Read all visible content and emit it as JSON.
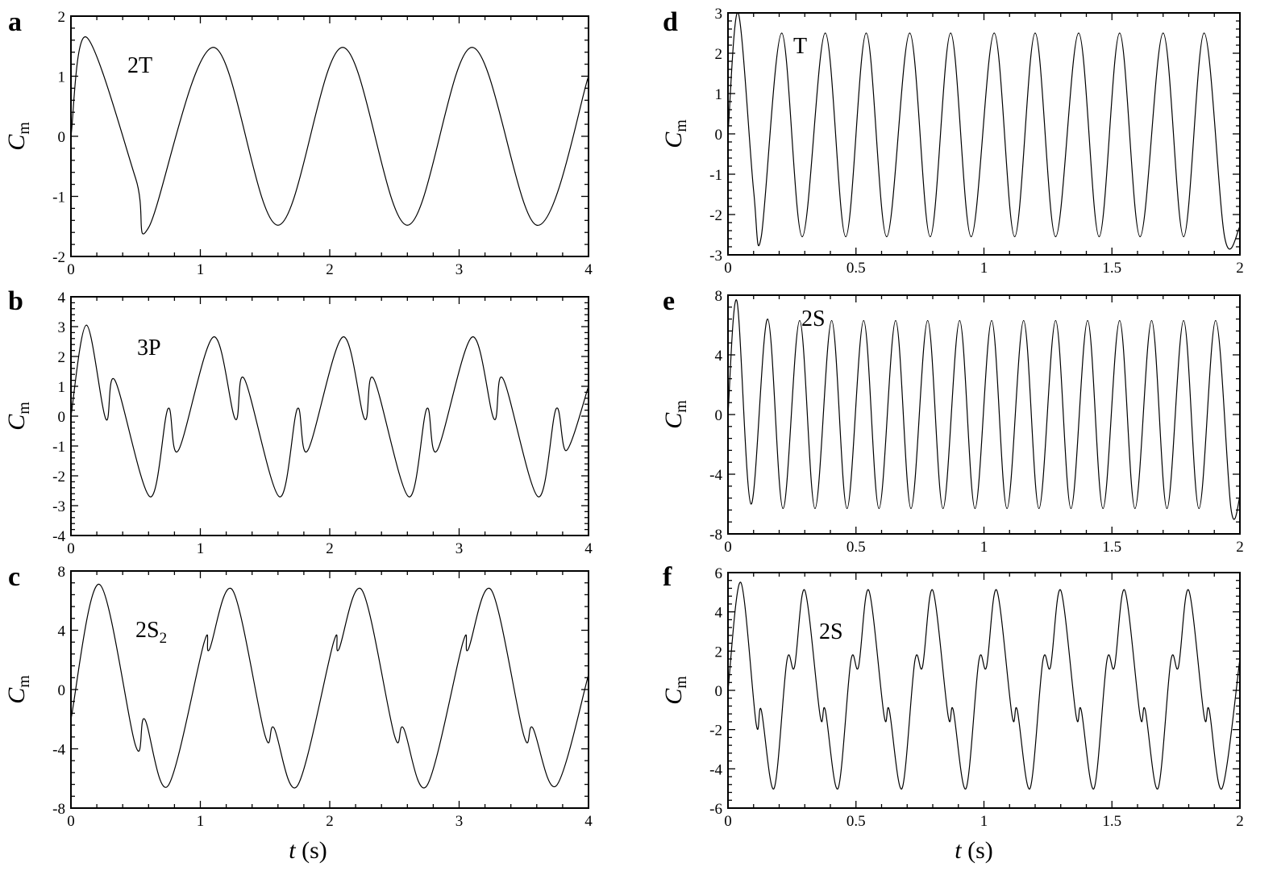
{
  "figure": {
    "x_axis_label_var": "t",
    "x_axis_label_unit": "(s)",
    "y_axis_label_var": "C",
    "y_axis_label_sub": "m"
  },
  "chart_data": [
    {
      "panel": "a",
      "type": "line",
      "annotation": "2T",
      "xlim": [
        0,
        4
      ],
      "ylim": [
        -2,
        2
      ],
      "xticks": [
        0,
        1,
        2,
        3,
        4
      ],
      "yticks": [
        -2,
        -1,
        0,
        1,
        2
      ],
      "xtick_labels": [
        "0",
        "1",
        "2",
        "3",
        "4"
      ],
      "ytick_labels": [
        "-2",
        "-1",
        "0",
        "1",
        "2"
      ],
      "ylabel": "Cm",
      "xlabel": "",
      "series": [
        {
          "x": [
            0,
            0.12,
            0.5,
            0.6,
            1.1,
            1.6,
            2.1,
            2.6,
            3.1,
            3.6,
            4.0
          ],
          "y": [
            0,
            1.65,
            -0.7,
            -1.52,
            1.48,
            -1.48,
            1.48,
            -1.48,
            1.48,
            -1.48,
            1.0
          ]
        }
      ]
    },
    {
      "panel": "b",
      "type": "line",
      "annotation": "3P",
      "xlim": [
        0,
        4
      ],
      "ylim": [
        -4,
        4
      ],
      "xticks": [
        0,
        1,
        2,
        3,
        4
      ],
      "yticks": [
        -4,
        -3,
        -2,
        -1,
        0,
        1,
        2,
        3,
        4
      ],
      "xtick_labels": [
        "0",
        "1",
        "2",
        "3",
        "4"
      ],
      "ytick_labels": [
        "-4",
        "-3",
        "-2",
        "-1",
        "0",
        "1",
        "2",
        "3",
        "4"
      ],
      "ylabel": "Cm",
      "xlabel": "",
      "series": [
        {
          "x": [
            0,
            0.12,
            0.27,
            0.34,
            0.61,
            0.75,
            0.83,
            1.1,
            1.27,
            1.34,
            1.61,
            1.75,
            1.83,
            2.1,
            2.27,
            2.34,
            2.61,
            2.75,
            2.83,
            3.1,
            3.27,
            3.34,
            3.61,
            3.75,
            3.83,
            4.0
          ],
          "y": [
            0,
            3.05,
            -0.1,
            1.2,
            -2.7,
            0.25,
            -1.15,
            2.65,
            -0.1,
            1.25,
            -2.7,
            0.25,
            -1.15,
            2.65,
            -0.1,
            1.25,
            -2.7,
            0.25,
            -1.15,
            2.65,
            -0.1,
            1.25,
            -2.7,
            0.25,
            -1.15,
            1.0
          ]
        }
      ]
    },
    {
      "panel": "c",
      "type": "line",
      "annotation": "2S",
      "annotation_sub": "2",
      "xlim": [
        0,
        4
      ],
      "ylim": [
        -8,
        8
      ],
      "xticks": [
        0,
        1,
        2,
        3,
        4
      ],
      "yticks": [
        -8,
        -4,
        0,
        4,
        8
      ],
      "xtick_labels": [
        "0",
        "1",
        "2",
        "3",
        "4"
      ],
      "ytick_labels": [
        "-8",
        "-4",
        "0",
        "4",
        "8"
      ],
      "ylabel": "Cm",
      "xlabel": "t (s)",
      "series": [
        {
          "x": [
            0,
            0.22,
            0.5,
            0.57,
            0.75,
            1.03,
            1.07,
            1.25,
            1.5,
            1.57,
            1.75,
            2.03,
            2.07,
            2.25,
            2.5,
            2.57,
            2.75,
            3.03,
            3.07,
            3.25,
            3.5,
            3.57,
            3.75,
            4.0
          ],
          "y": [
            -2,
            7.1,
            -3.8,
            -2.0,
            -6.5,
            3.2,
            2.7,
            6.7,
            -3.1,
            -2.6,
            -6.5,
            3.2,
            2.7,
            6.7,
            -3.1,
            -2.6,
            -6.5,
            3.2,
            2.7,
            6.7,
            -3.1,
            -2.6,
            -6.5,
            1.0
          ]
        }
      ]
    },
    {
      "panel": "d",
      "type": "line",
      "annotation": "T",
      "xlim": [
        0,
        2
      ],
      "ylim": [
        -3,
        3
      ],
      "xticks": [
        0,
        0.5,
        1,
        1.5,
        2
      ],
      "yticks": [
        -3,
        -2,
        -1,
        0,
        1,
        2,
        3
      ],
      "xtick_labels": [
        "0",
        "0.5",
        "1",
        "1.5",
        "2"
      ],
      "ytick_labels": [
        "-3",
        "-2",
        "-1",
        "0",
        "1",
        "2",
        "3"
      ],
      "ylabel": "Cm",
      "xlabel": "",
      "series": [
        {
          "x": [
            0,
            0.04,
            0.1,
            0.13,
            0.21,
            0.29,
            0.38,
            0.46,
            0.54,
            0.62,
            0.71,
            0.79,
            0.87,
            0.95,
            1.04,
            1.12,
            1.2,
            1.28,
            1.37,
            1.45,
            1.53,
            1.61,
            1.7,
            1.78,
            1.86,
            1.94,
            2.0
          ],
          "y": [
            0,
            3.0,
            -1.4,
            -2.55,
            2.5,
            -2.55,
            2.5,
            -2.55,
            2.5,
            -2.55,
            2.5,
            -2.55,
            2.5,
            -2.55,
            2.5,
            -2.55,
            2.5,
            -2.55,
            2.5,
            -2.55,
            2.5,
            -2.55,
            2.5,
            -2.55,
            2.5,
            -2.55,
            -2.3
          ]
        }
      ]
    },
    {
      "panel": "e",
      "type": "line",
      "annotation": "2S",
      "xlim": [
        0,
        2
      ],
      "ylim": [
        -8,
        8
      ],
      "xticks": [
        0,
        0.5,
        1,
        1.5,
        2
      ],
      "yticks": [
        -8,
        -4,
        0,
        4,
        8
      ],
      "xtick_labels": [
        "0",
        "0.5",
        "1",
        "1.5",
        "2"
      ],
      "ytick_labels": [
        "-8",
        "-4",
        "0",
        "4",
        "8"
      ],
      "ylabel": "Cm",
      "xlabel": "",
      "series": [
        {
          "x": [
            0,
            0.035,
            0.09,
            0.155,
            0.215,
            0.28,
            0.34,
            0.405,
            0.465,
            0.53,
            0.59,
            0.655,
            0.715,
            0.78,
            0.84,
            0.905,
            0.965,
            1.03,
            1.09,
            1.155,
            1.215,
            1.28,
            1.34,
            1.405,
            1.465,
            1.53,
            1.59,
            1.655,
            1.715,
            1.78,
            1.84,
            1.905,
            1.965,
            2.0
          ],
          "y": [
            0,
            7.6,
            -6.0,
            6.4,
            -6.3,
            6.3,
            -6.3,
            6.3,
            -6.3,
            6.3,
            -6.3,
            6.3,
            -6.3,
            6.3,
            -6.3,
            6.3,
            -6.3,
            6.3,
            -6.3,
            6.3,
            -6.3,
            6.3,
            -6.3,
            6.3,
            -6.3,
            6.3,
            -6.3,
            6.3,
            -6.3,
            6.3,
            -6.3,
            6.3,
            -6.3,
            -5.5
          ]
        }
      ]
    },
    {
      "panel": "f",
      "type": "line",
      "annotation": "2S",
      "xlim": [
        0,
        2
      ],
      "ylim": [
        -6,
        6
      ],
      "xticks": [
        0,
        0.5,
        1,
        1.5,
        2
      ],
      "yticks": [
        -6,
        -4,
        -2,
        0,
        2,
        4,
        6
      ],
      "xtick_labels": [
        "0",
        "0.5",
        "1",
        "1.5",
        "2"
      ],
      "ytick_labels": [
        "-6",
        "-4",
        "-2",
        "0",
        "2",
        "4",
        "6"
      ],
      "ylabel": "Cm",
      "xlabel": "t (s)",
      "series": [
        {
          "x": [
            0,
            0.05,
            0.11,
            0.13,
            0.18,
            0.23,
            0.26,
            0.3,
            0.36,
            0.38,
            0.43,
            0.48,
            0.51,
            0.55,
            0.61,
            0.63,
            0.68,
            0.73,
            0.76,
            0.8,
            0.86,
            0.88,
            0.93,
            0.98,
            1.01,
            1.05,
            1.11,
            1.13,
            1.18,
            1.23,
            1.26,
            1.3,
            1.36,
            1.38,
            1.43,
            1.48,
            1.51,
            1.55,
            1.61,
            1.63,
            1.68,
            1.73,
            1.76,
            1.8,
            1.86,
            1.88,
            1.93,
            2.0
          ],
          "y": [
            0,
            5.5,
            -1.7,
            -1.0,
            -5.0,
            1.5,
            1.2,
            5.1,
            -1.3,
            -1.0,
            -5.0,
            1.5,
            1.2,
            5.1,
            -1.3,
            -1.0,
            -5.0,
            1.5,
            1.2,
            5.1,
            -1.3,
            -1.0,
            -5.0,
            1.5,
            1.2,
            5.1,
            -1.3,
            -1.0,
            -5.0,
            1.5,
            1.2,
            5.1,
            -1.3,
            -1.0,
            -5.0,
            1.5,
            1.2,
            5.1,
            -1.3,
            -1.0,
            -5.0,
            1.5,
            1.2,
            5.1,
            -1.3,
            -1.0,
            -5.0,
            1.6
          ]
        }
      ]
    }
  ]
}
